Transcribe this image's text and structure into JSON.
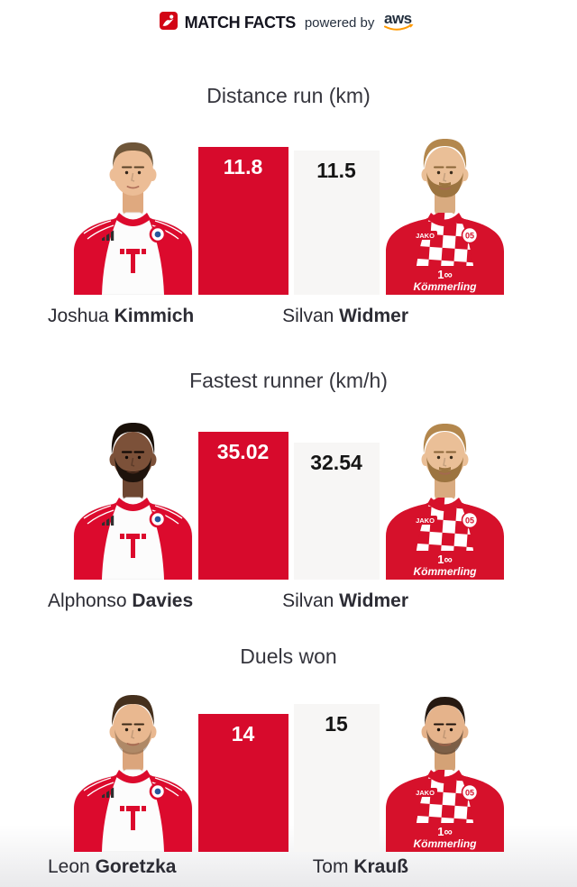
{
  "header": {
    "brand": "MATCH FACTS",
    "powered_by": "powered by",
    "aws_label": "aws"
  },
  "colors": {
    "accent_red": "#d70a2c",
    "bar_gray": "#f7f6f5",
    "aws_orange": "#ff9900",
    "ink": "#232f3e",
    "bundesliga_red": "#d20515"
  },
  "kits": {
    "mainz": {
      "brand": "JAKO",
      "crest": "05",
      "mark": "1∞",
      "sponsor": "Kömmerling"
    }
  },
  "sections": [
    {
      "title": "Distance run (km)",
      "left": {
        "first": "Joshua",
        "last": "Kimmich",
        "value": "11.8"
      },
      "right": {
        "first": "Silvan",
        "last": "Widmer",
        "value": "11.5"
      }
    },
    {
      "title": "Fastest runner (km/h)",
      "left": {
        "first": "Alphonso",
        "last": "Davies",
        "value": "35.02"
      },
      "right": {
        "first": "Silvan",
        "last": "Widmer",
        "value": "32.54"
      }
    },
    {
      "title": "Duels won",
      "left": {
        "first": "Leon",
        "last": "Goretzka",
        "value": "14"
      },
      "right": {
        "first": "Tom",
        "last": "Krauß",
        "value": "15"
      }
    }
  ],
  "chart_data": [
    {
      "type": "bar",
      "title": "Distance run (km)",
      "categories": [
        "Joshua Kimmich",
        "Silvan Widmer"
      ],
      "values": [
        11.8,
        11.5
      ],
      "colors": [
        "#d70a2c",
        "#f7f6f5"
      ],
      "value_labels": [
        "11.8",
        "11.5"
      ]
    },
    {
      "type": "bar",
      "title": "Fastest runner (km/h)",
      "categories": [
        "Alphonso Davies",
        "Silvan Widmer"
      ],
      "values": [
        35.02,
        32.54
      ],
      "colors": [
        "#d70a2c",
        "#f7f6f5"
      ],
      "value_labels": [
        "35.02",
        "32.54"
      ]
    },
    {
      "type": "bar",
      "title": "Duels won",
      "categories": [
        "Leon Goretzka",
        "Tom Krauß"
      ],
      "values": [
        14,
        15
      ],
      "colors": [
        "#d70a2c",
        "#f7f6f5"
      ],
      "value_labels": [
        "14",
        "15"
      ]
    }
  ]
}
